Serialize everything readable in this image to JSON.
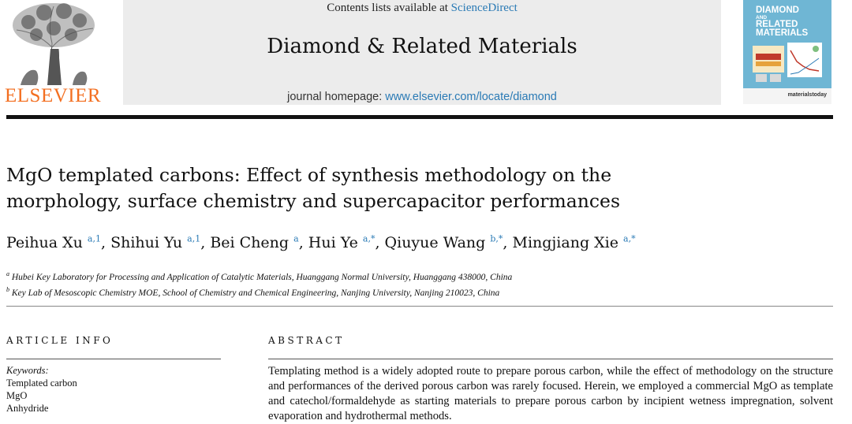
{
  "header": {
    "publisher": "ELSEVIER",
    "contents_prefix": "Contents lists available at ",
    "contents_link": "ScienceDirect",
    "journal_title": "Diamond & Related Materials",
    "homepage_prefix": "journal homepage: ",
    "homepage_link": "www.elsevier.com/locate/diamond",
    "cover": {
      "line1": "DIAMOND",
      "line2": "AND",
      "line3": "RELATED",
      "line4": "MATERIALS",
      "brand": "materialstoday"
    }
  },
  "article": {
    "title_line1": "MgO templated carbons: Effect of synthesis methodology on the",
    "title_line2": "morphology, surface chemistry and supercapacitor performances",
    "authors": [
      {
        "name": "Peihua Xu",
        "sup": "a,1",
        "sep": ", "
      },
      {
        "name": "Shihui Yu",
        "sup": "a,1",
        "sep": ", "
      },
      {
        "name": "Bei Cheng",
        "sup": "a",
        "sep": ", "
      },
      {
        "name": "Hui Ye",
        "sup": "a,*",
        "sep": ", "
      },
      {
        "name": "Qiuyue Wang",
        "sup": "b,*",
        "sep": ", "
      },
      {
        "name": "Mingjiang Xie",
        "sup": "a,*",
        "sep": ""
      }
    ],
    "affiliations": [
      {
        "mark": "a",
        "text": "Hubei Key Laboratory for Processing and Application of Catalytic Materials, Huanggang Normal University, Huanggang 438000, China"
      },
      {
        "mark": "b",
        "text": "Key Lab of Mesoscopic Chemistry MOE, School of Chemistry and Chemical Engineering, Nanjing University, Nanjing 210023, China"
      }
    ]
  },
  "info": {
    "heading": "ARTICLE INFO",
    "keywords_label": "Keywords:",
    "keywords": [
      "Templated carbon",
      "MgO",
      "Anhydride"
    ]
  },
  "abstract": {
    "heading": "ABSTRACT",
    "text": "Templating method is a widely adopted route to prepare porous carbon, while the effect of methodology on the structure and performances of the derived porous carbon was rarely focused. Herein, we employed a commercial MgO as template and catechol/formaldehyde as starting materials to prepare porous carbon by incipient wetness impregnation, solvent evaporation and hydrothermal methods."
  },
  "colors": {
    "elsevier_orange": "#f36f21",
    "link_blue": "#2a7ab5",
    "masthead_gray": "#ececec",
    "cover_blue": "#6fb6d4"
  }
}
